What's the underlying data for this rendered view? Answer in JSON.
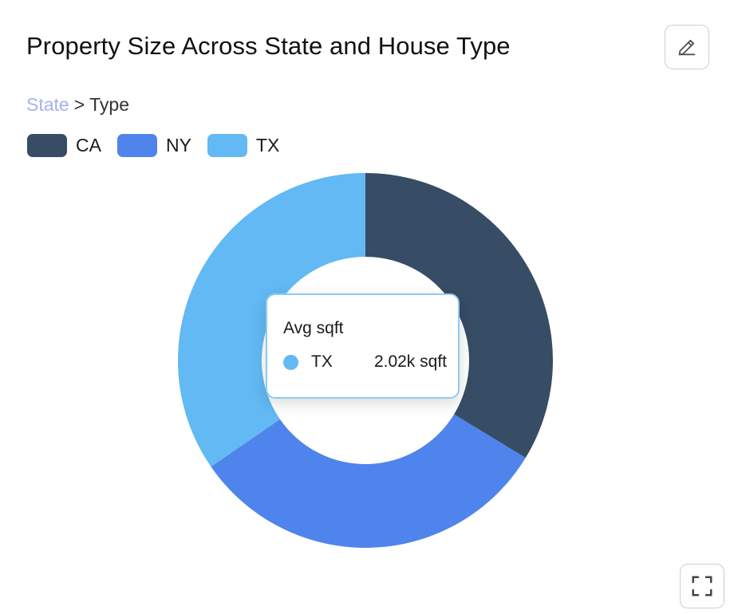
{
  "header": {
    "title": "Property Size Across State and House Type",
    "edit_icon": "pencil-icon"
  },
  "breadcrumb": {
    "link": "State",
    "separator": ">",
    "current": "Type"
  },
  "colors": {
    "CA": "#374c65",
    "NY": "#4f84ec",
    "TX": "#62b9f3"
  },
  "chart_data": {
    "type": "pie",
    "variant": "donut",
    "legend_position": "top-left",
    "categories": [
      "CA",
      "NY",
      "TX"
    ],
    "values": [
      0.337,
      0.317,
      0.346
    ],
    "series": [
      {
        "values": [
          0.337,
          0.317,
          0.346
        ]
      }
    ],
    "start_angle_deg": 0,
    "direction": "clockwise"
  },
  "tooltip": {
    "title": "Avg sqft",
    "series": "TX",
    "value": "2.02k sqft"
  },
  "footer": {
    "fullscreen_icon": "fullscreen-icon"
  }
}
